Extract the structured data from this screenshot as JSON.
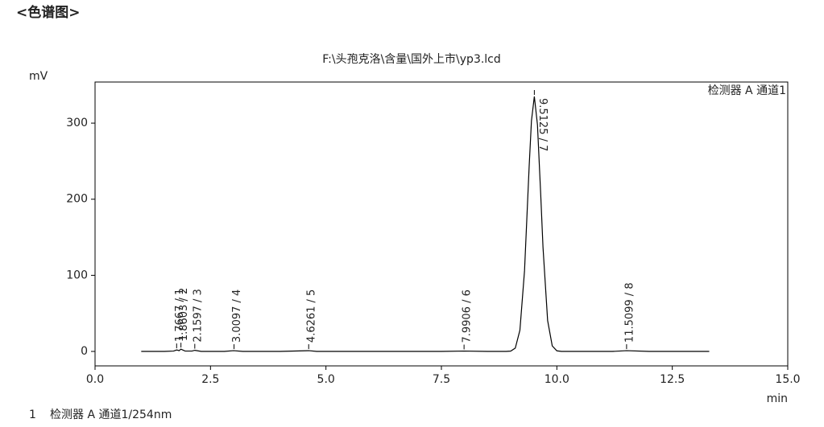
{
  "header": "<色谱图>",
  "chart_data": {
    "type": "line",
    "title": "F:\\头孢克洛\\含量\\国外上市\\yp3.lcd",
    "ylabel": "mV",
    "xlabel": "min",
    "xlim": [
      0,
      15
    ],
    "ylim": [
      -19,
      354
    ],
    "xticks": [
      {
        "value": 0,
        "label": "0.0"
      },
      2.5,
      {
        "value": 5,
        "label": "5.0"
      },
      7.5,
      {
        "value": 10,
        "label": "10.0"
      },
      12.5,
      {
        "value": 15,
        "label": "15.0"
      }
    ],
    "yticks": [
      0,
      100,
      200,
      300
    ],
    "legend": "top-right",
    "x": [
      1.0,
      1.5,
      1.7,
      1.77,
      1.82,
      1.86,
      1.95,
      2.1,
      2.16,
      2.3,
      2.8,
      3.0,
      3.2,
      4.0,
      4.63,
      4.8,
      6.0,
      7.5,
      7.99,
      8.5,
      8.9,
      9.0,
      9.1,
      9.2,
      9.3,
      9.4,
      9.45,
      9.5125,
      9.58,
      9.65,
      9.7,
      9.8,
      9.9,
      10.0,
      10.1,
      10.3,
      10.7,
      11.2,
      11.51,
      12.0,
      13.3
    ],
    "series": [
      {
        "name": "检测器 A 通道1",
        "color": "#000000",
        "values": [
          0,
          0,
          0.5,
          2,
          1,
          3,
          0.5,
          0.5,
          1.5,
          0,
          0,
          1,
          0,
          0,
          1,
          0,
          0,
          0,
          0.5,
          0,
          0,
          0.4,
          4.4,
          27.8,
          106,
          242.6,
          303,
          335,
          298,
          207,
          137,
          40.7,
          7.3,
          0.8,
          0,
          0,
          0,
          0,
          1,
          0,
          0
        ]
      }
    ],
    "peaks": [
      {
        "label": "1.7667 / 1",
        "x": 1.7667,
        "y": 2
      },
      {
        "label": "1.8603 / 2",
        "x": 1.8603,
        "y": 3
      },
      {
        "label": "2.1597 / 3",
        "x": 2.1597,
        "y": 1.5
      },
      {
        "label": "3.0097 / 4",
        "x": 3.0097,
        "y": 1
      },
      {
        "label": "4.6261 / 5",
        "x": 4.6261,
        "y": 1
      },
      {
        "label": "7.9906 / 6",
        "x": 7.9906,
        "y": 0.5
      },
      {
        "label": "9.5125 / 7",
        "x": 9.5125,
        "y": 335
      },
      {
        "label": "11.5099 / 8",
        "x": 11.5099,
        "y": 1
      }
    ]
  },
  "footer": {
    "index": "1",
    "text": "检测器 A 通道1/254nm"
  }
}
